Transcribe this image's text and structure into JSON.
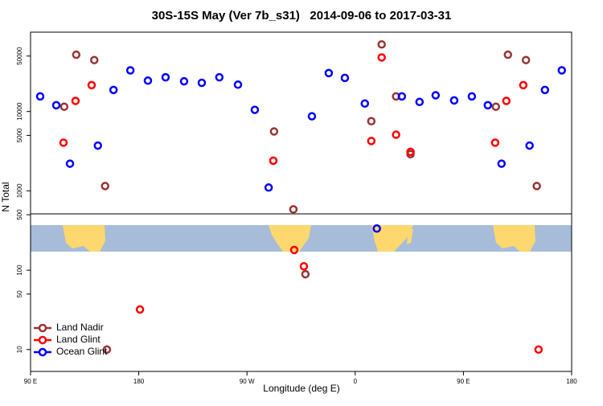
{
  "chart_data": {
    "type": "scatter",
    "title": "30S-15S May (Ver 7b_s31)   2014-09-06 to 2017-03-31",
    "x_label": "Longitude (deg E)",
    "y_label": "N Total",
    "log_y": true,
    "legend": "bottom-left",
    "xlim": [
      90,
      540
    ],
    "ylim": [
      5.3,
      100000
    ],
    "xticks": [
      {
        "value": 90,
        "label": "90 E"
      },
      180,
      {
        "value": 270,
        "label": "90 W"
      },
      {
        "value": 360,
        "label": "0"
      },
      {
        "value": 450,
        "label": "90 E"
      },
      {
        "value": 540,
        "label": "180"
      }
    ],
    "yticks": [
      10,
      50,
      100,
      500,
      1000,
      5000,
      10000,
      50000
    ],
    "series": [
      {
        "name": "Land Nadir",
        "color": "#993333",
        "x": [
          118,
          128,
          143,
          152,
          153.5,
          292.5,
          308.6,
          318.6,
          373.4,
          382,
          394,
          406,
          477,
          487,
          502,
          511
        ],
        "values": [
          11500,
          52000,
          44500,
          1150,
          10,
          5600,
          585,
          89,
          7550,
          70000,
          15500,
          2900,
          11500,
          52000,
          44500,
          1150
        ]
      },
      {
        "name": "Land Glint",
        "color": "#ff0000",
        "x": [
          117.4,
          127.4,
          140.8,
          181,
          291.9,
          309.3,
          317.3,
          373.4,
          382,
          394,
          406,
          476.4,
          485.7,
          499.8,
          512.5
        ],
        "values": [
          4050,
          13600,
          21500,
          32,
          2400,
          180,
          112,
          4250,
          48000,
          5100,
          3100,
          4050,
          13600,
          21500,
          10
        ]
      },
      {
        "name": "Ocean Glint",
        "color": "#0000ff",
        "x": [
          98,
          111.4,
          122.8,
          146,
          159,
          173,
          187.6,
          202.3,
          217.7,
          232.4,
          247,
          262.5,
          276.5,
          288,
          324,
          338,
          351.4,
          368,
          378,
          398.8,
          413.5,
          426.9,
          442.3,
          457,
          470.3,
          481.7,
          505,
          517.8,
          531.8
        ],
        "values": [
          15500,
          12000,
          2200,
          3720,
          18700,
          33000,
          24500,
          27000,
          24000,
          23000,
          27000,
          21800,
          10500,
          1100,
          8700,
          30500,
          26500,
          12600,
          335,
          15500,
          13200,
          16000,
          13800,
          15500,
          12000,
          2200,
          3720,
          18700,
          33000
        ]
      }
    ]
  }
}
